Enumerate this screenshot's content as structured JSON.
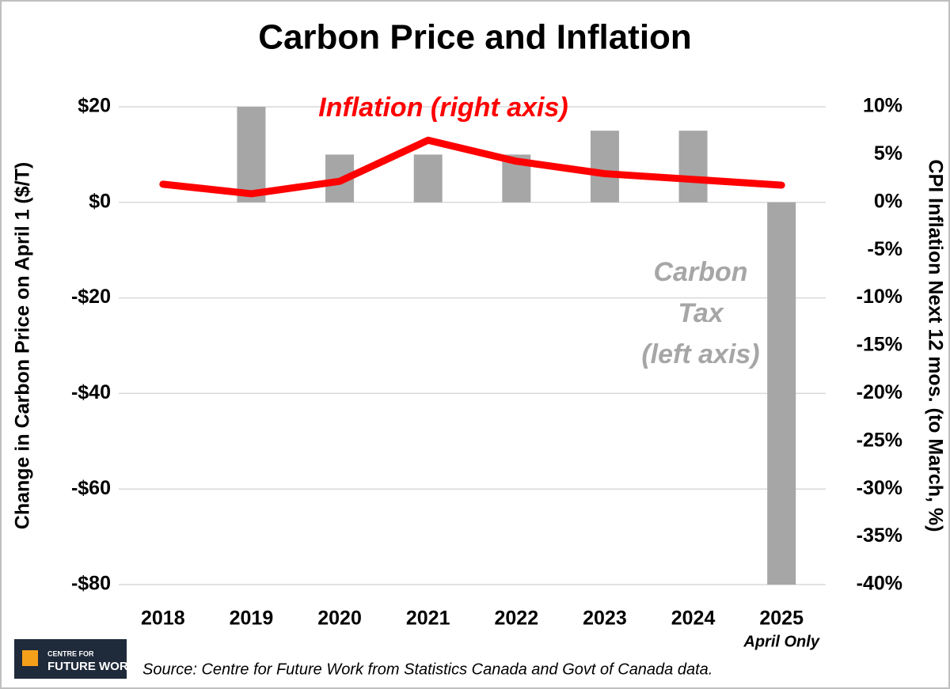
{
  "chart_data": {
    "type": "bar",
    "title": "Carbon Price and Inflation",
    "y_label": "Change in Carbon Price on April 1 ($/T)",
    "y2_label": "CPI Inflation Next 12 mos. (to March, %)",
    "categories": [
      "2018",
      "2019",
      "2020",
      "2021",
      "2022",
      "2023",
      "2024",
      "2025"
    ],
    "category_note": "April Only",
    "series": [
      {
        "type": "bar",
        "color": "#a6a6a6",
        "axis": "y",
        "values": [
          0,
          20,
          10,
          10,
          10,
          15,
          15,
          -80
        ]
      },
      {
        "type": "line",
        "color": "#ff0000",
        "axis": "y2",
        "values": [
          1.9,
          0.9,
          2.2,
          6.5,
          4.3,
          3.0,
          2.4,
          1.8
        ]
      }
    ],
    "annotations": {
      "inflation": "Inflation (right axis)",
      "carbon": [
        "Carbon",
        "Tax",
        "(left axis)"
      ]
    },
    "ylim": [
      -80,
      20
    ],
    "yticks": [
      {
        "value": 20,
        "label": "$20"
      },
      {
        "value": 0,
        "label": "$0"
      },
      {
        "value": -20,
        "label": "-$20"
      },
      {
        "value": -40,
        "label": "-$40"
      },
      {
        "value": -60,
        "label": "-$60"
      },
      {
        "value": -80,
        "label": "-$80"
      }
    ],
    "y2lim": [
      -40,
      10
    ],
    "y2ticks": [
      {
        "value": 10,
        "label": "10%"
      },
      {
        "value": 5,
        "label": "5%"
      },
      {
        "value": 0,
        "label": "0%"
      },
      {
        "value": -5,
        "label": "-5%"
      },
      {
        "value": -10,
        "label": "-10%"
      },
      {
        "value": -15,
        "label": "-15%"
      },
      {
        "value": -20,
        "label": "-20%"
      },
      {
        "value": -25,
        "label": "-25%"
      },
      {
        "value": -30,
        "label": "-30%"
      },
      {
        "value": -35,
        "label": "-35%"
      },
      {
        "value": -40,
        "label": "-40%"
      }
    ],
    "grid": true,
    "source": "Source: Centre for Future Work from Statistics Canada and Govt of Canada data.",
    "logo": [
      "CENTRE FOR",
      "FUTURE WORK"
    ]
  }
}
